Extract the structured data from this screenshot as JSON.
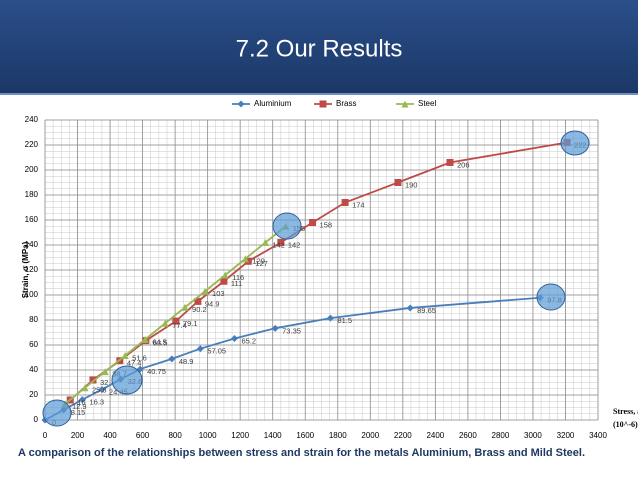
{
  "title": "7.2 Our Results",
  "caption": "A comparison of the relationships between stress and strain for the metals Aluminium, Brass and Mild Steel.",
  "chart_data": {
    "type": "line",
    "y_label": "Strain, σ (MPa)",
    "x_label": [
      "Stress, ε",
      "(10^-6)"
    ],
    "xlim": [
      0,
      3400
    ],
    "xticks": [
      0,
      200,
      400,
      600,
      800,
      1000,
      1200,
      1400,
      1600,
      1800,
      2000,
      2200,
      2400,
      2600,
      2800,
      3000,
      3200,
      3400
    ],
    "ylim": [
      0,
      240
    ],
    "yticks": [
      0,
      20,
      40,
      60,
      80,
      100,
      120,
      140,
      160,
      180,
      200,
      220,
      240
    ],
    "grid": true,
    "legend": "top",
    "series": [
      {
        "name": "Aluminium",
        "color": "#4a7ebb",
        "marker": "diamond",
        "x": [
          0,
          115,
          230,
          350,
          465,
          585,
          780,
          955,
          1165,
          1415,
          1755,
          2245,
          3045
        ],
        "values": [
          0,
          8.15,
          16.3,
          24.45,
          32.6,
          40.75,
          48.9,
          57.05,
          65.2,
          73.35,
          81.5,
          89.65,
          97.8
        ]
      },
      {
        "name": "Brass",
        "color": "#be4b48",
        "marker": "square",
        "x": [
          155,
          295,
          460,
          620,
          805,
          940,
          1100,
          1250,
          1450,
          1645,
          1845,
          2170,
          2490,
          3210
        ],
        "values": [
          16,
          32,
          47.4,
          63.5,
          79.1,
          94.9,
          111,
          127,
          142,
          158,
          174,
          190,
          206,
          222
        ]
      },
      {
        "name": "Steel",
        "color": "#98b954",
        "marker": "triangle",
        "x": [
          123,
          246,
          370,
          493,
          616,
          739,
          861,
          984,
          1108,
          1232,
          1355,
          1480
        ],
        "values": [
          12.9,
          25.8,
          38.7,
          51.6,
          64.5,
          77.4,
          90.2,
          103,
          116,
          129,
          142,
          155
        ]
      }
    ]
  }
}
